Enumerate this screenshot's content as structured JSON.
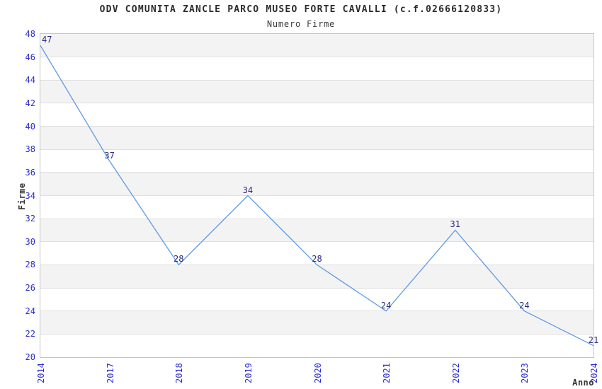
{
  "chart_data": {
    "type": "line",
    "title": "ODV COMUNITA ZANCLE PARCO MUSEO FORTE CAVALLI (c.f.02666120833)",
    "subtitle": "Numero Firme",
    "xlabel": "Anno",
    "ylabel": "Firme",
    "categories": [
      "2014",
      "2017",
      "2018",
      "2019",
      "2020",
      "2021",
      "2022",
      "2023",
      "2024"
    ],
    "values": [
      47,
      37,
      28,
      34,
      28,
      24,
      31,
      24,
      21
    ],
    "ylim": [
      20,
      48
    ],
    "ytick_step": 2,
    "yticks": [
      20,
      22,
      24,
      26,
      28,
      30,
      32,
      34,
      36,
      38,
      40,
      42,
      44,
      46,
      48
    ],
    "grid": "horizontal-only",
    "background_bands": "alternating gray/white every 2 units, gray at top band 46-48",
    "legend_position": "none",
    "markers": "none",
    "data_labels_shown": true,
    "colors": {
      "line": "#5e9ae0",
      "tick_label": "#2d2dcc",
      "data_label": "#2a2a80",
      "band_gray": "#f3f3f3",
      "gridline": "#e0e0e0",
      "plot_border": "#c6c6c6",
      "title": "#2b2b2b",
      "subtitle": "#3c3c3c",
      "axis_label": "#333333"
    }
  }
}
